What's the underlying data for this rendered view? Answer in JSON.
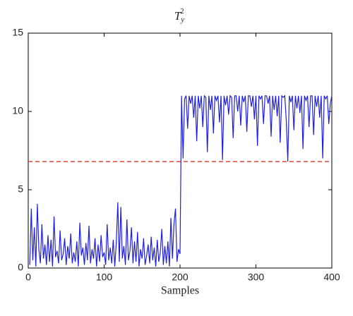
{
  "chart_data": {
    "type": "line",
    "title": {
      "base": "T",
      "sub": "y",
      "sup": "2"
    },
    "xlabel": "Samples",
    "xlim": [
      0,
      400
    ],
    "xticks": [
      0,
      100,
      200,
      300,
      400
    ],
    "ylim": [
      0,
      15
    ],
    "yticks": [
      0,
      5,
      10,
      15
    ],
    "grid": false,
    "threshold": {
      "value": 6.8,
      "color": "#e0302a",
      "dashed": true
    },
    "series": [
      {
        "color": "#1f1fe0",
        "x": [
          2,
          4,
          6,
          8,
          10,
          12,
          14,
          16,
          18,
          20,
          22,
          24,
          26,
          28,
          30,
          32,
          34,
          36,
          38,
          40,
          42,
          44,
          46,
          48,
          50,
          52,
          54,
          56,
          58,
          60,
          62,
          64,
          66,
          68,
          70,
          72,
          74,
          76,
          78,
          80,
          82,
          84,
          86,
          88,
          90,
          92,
          94,
          96,
          98,
          100,
          102,
          104,
          106,
          108,
          110,
          112,
          114,
          116,
          118,
          120,
          122,
          124,
          126,
          128,
          130,
          132,
          134,
          136,
          138,
          140,
          142,
          144,
          146,
          148,
          150,
          152,
          154,
          156,
          158,
          160,
          162,
          164,
          166,
          168,
          170,
          172,
          174,
          176,
          178,
          180,
          182,
          184,
          186,
          188,
          190,
          192,
          194,
          196,
          198,
          200,
          202,
          204,
          206,
          208,
          210,
          212,
          214,
          216,
          218,
          220,
          222,
          224,
          226,
          228,
          230,
          232,
          234,
          236,
          238,
          240,
          242,
          244,
          246,
          248,
          250,
          252,
          254,
          256,
          258,
          260,
          262,
          264,
          266,
          268,
          270,
          272,
          274,
          276,
          278,
          280,
          282,
          284,
          286,
          288,
          290,
          292,
          294,
          296,
          298,
          300,
          302,
          304,
          306,
          308,
          310,
          312,
          314,
          316,
          318,
          320,
          322,
          324,
          326,
          328,
          330,
          332,
          334,
          336,
          338,
          340,
          342,
          344,
          346,
          348,
          350,
          352,
          354,
          356,
          358,
          360,
          362,
          364,
          366,
          368,
          370,
          372,
          374,
          376,
          378,
          380,
          382,
          384,
          386,
          388,
          390,
          392,
          394,
          396,
          398,
          400
        ],
        "values": [
          0.2,
          3.8,
          0.5,
          2.6,
          0.1,
          4.1,
          1.2,
          0.3,
          2.8,
          0.6,
          1.5,
          0.2,
          2.1,
          0.4,
          1.8,
          0.1,
          3.3,
          0.7,
          1.1,
          0.3,
          2.4,
          0.5,
          0.9,
          1.9,
          0.2,
          1.4,
          0.6,
          2.2,
          0.3,
          1.0,
          0.4,
          1.7,
          0.1,
          2.9,
          0.8,
          1.3,
          0.2,
          1.6,
          0.5,
          2.7,
          0.3,
          1.2,
          0.6,
          1.9,
          0.1,
          1.5,
          0.4,
          2.1,
          0.7,
          1.0,
          0.2,
          2.8,
          0.5,
          1.3,
          0.3,
          1.8,
          0.1,
          1.6,
          4.2,
          0.4,
          3.9,
          0.6,
          1.4,
          0.2,
          3.1,
          0.5,
          1.1,
          2.6,
          0.3,
          1.7,
          0.4,
          2.3,
          0.1,
          1.2,
          0.6,
          1.9,
          0.2,
          0.8,
          1.5,
          0.3,
          2.0,
          0.5,
          1.3,
          0.1,
          1.8,
          0.4,
          1.0,
          2.5,
          0.2,
          1.4,
          0.3,
          1.7,
          0.1,
          3.2,
          0.6,
          2.8,
          3.8,
          0.4,
          1.2,
          0.9,
          11.0,
          7.0,
          10.8,
          11.0,
          8.9,
          11.0,
          10.5,
          11.0,
          9.6,
          11.0,
          8.1,
          11.0,
          10.2,
          11.0,
          9.0,
          11.0,
          10.9,
          7.4,
          11.0,
          10.1,
          11.0,
          8.6,
          11.0,
          10.7,
          11.0,
          9.3,
          11.0,
          6.9,
          11.0,
          10.4,
          11.0,
          9.8,
          11.0,
          10.9,
          8.3,
          11.0,
          11.0,
          10.0,
          11.0,
          9.1,
          11.0,
          10.6,
          11.0,
          8.7,
          11.0,
          11.0,
          10.3,
          11.0,
          9.5,
          11.0,
          7.8,
          11.0,
          10.8,
          11.0,
          9.2,
          11.0,
          11.0,
          10.5,
          11.0,
          8.4,
          11.0,
          10.1,
          11.0,
          9.7,
          11.0,
          8.0,
          11.0,
          10.9,
          11.0,
          9.4,
          6.8,
          11.0,
          10.6,
          11.0,
          8.8,
          11.0,
          10.2,
          11.0,
          9.9,
          11.0,
          7.6,
          11.0,
          10.7,
          11.0,
          9.0,
          11.0,
          11.0,
          8.5,
          11.0,
          10.3,
          11.0,
          9.6,
          11.0,
          7.0,
          11.0,
          10.8,
          11.0,
          9.2,
          10.5,
          11.0
        ]
      }
    ]
  }
}
